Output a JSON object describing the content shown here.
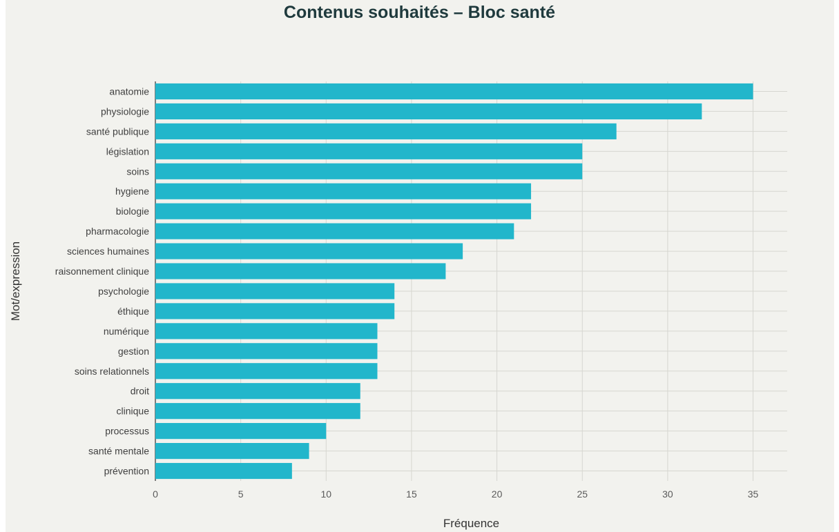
{
  "chart_data": {
    "type": "bar",
    "orientation": "horizontal",
    "title": "Contenus souhaités – Bloc santé",
    "xlabel": "Fréquence",
    "ylabel": "Mot/expression",
    "categories": [
      "anatomie",
      "physiologie",
      "santé publique",
      "législation",
      "soins",
      "hygiene",
      "biologie",
      "pharmacologie",
      "sciences humaines",
      "raisonnement clinique",
      "psychologie",
      "éthique",
      "numérique",
      "gestion",
      "soins relationnels",
      "droit",
      "clinique",
      "processus",
      "santé mentale",
      "prévention"
    ],
    "values": [
      35,
      32,
      27,
      25,
      25,
      22,
      22,
      21,
      18,
      17,
      14,
      14,
      13,
      13,
      13,
      12,
      12,
      10,
      9,
      8
    ],
    "xlim": [
      0,
      37
    ],
    "xticks": [
      0,
      5,
      10,
      15,
      20,
      25,
      30,
      35
    ],
    "xtick_labels": [
      "0",
      "5",
      "10",
      "15",
      "20",
      "25",
      "30",
      "35"
    ],
    "grid": true,
    "bar_color": "#22b6cb",
    "background_color": "#f2f2ee",
    "grid_color": "#d6d6d0"
  }
}
